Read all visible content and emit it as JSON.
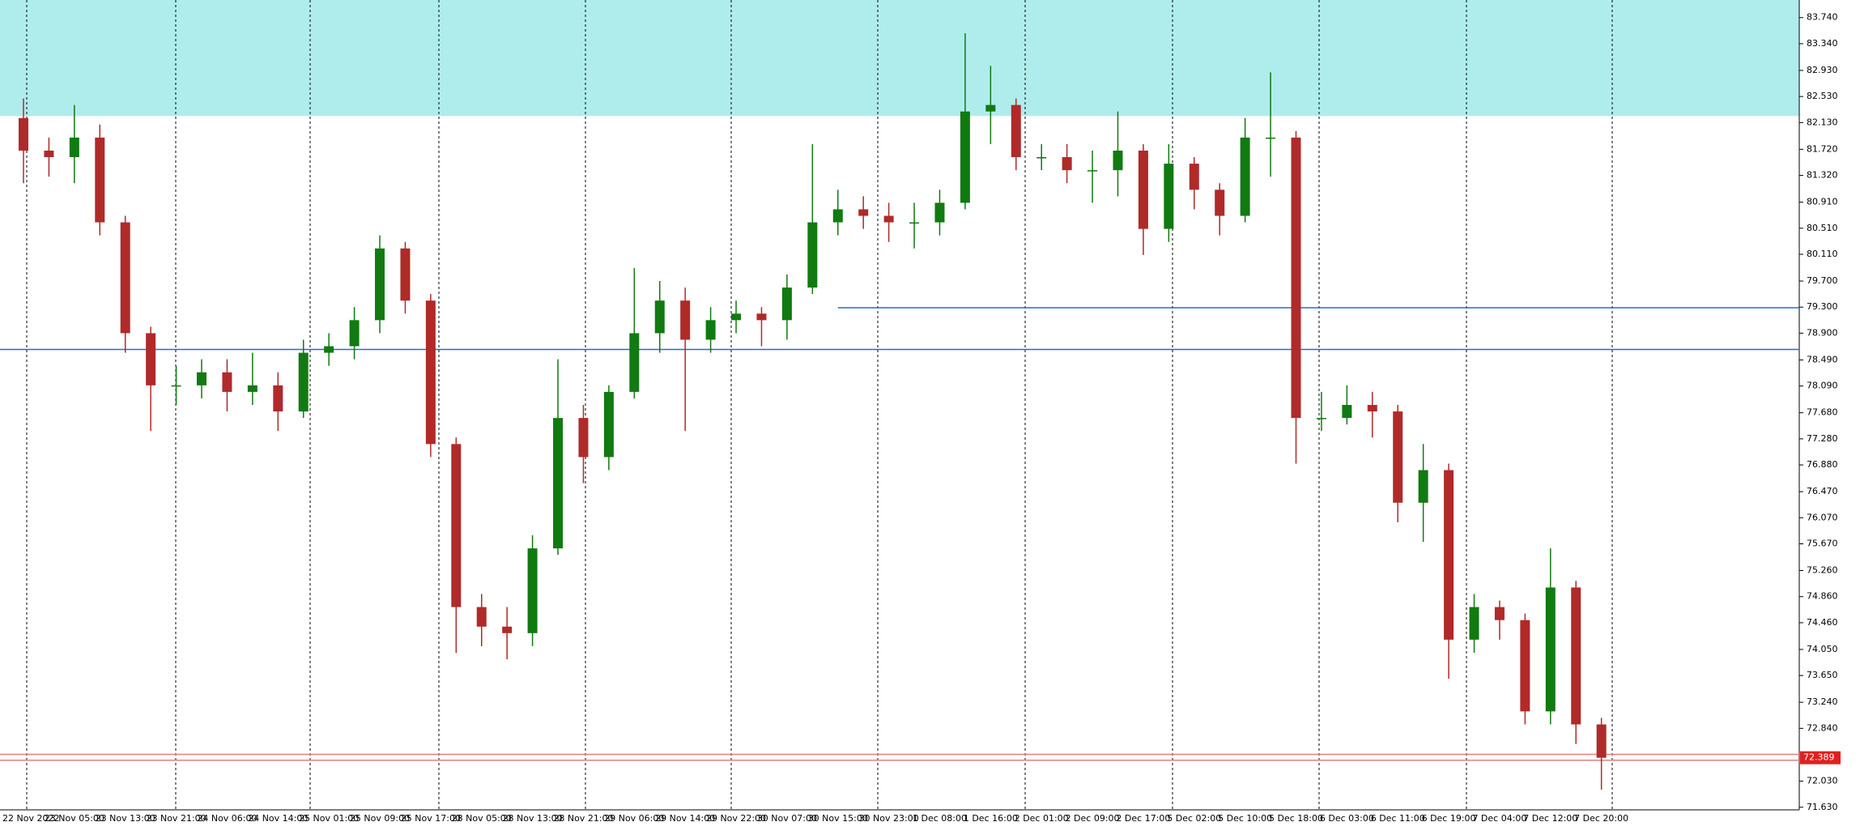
{
  "chart_data": {
    "type": "candlestick",
    "categories": [
      "22 Nov 2022",
      null,
      "23 Nov 05:00",
      null,
      "23 Nov 13:00",
      null,
      "23 Nov 21:00",
      null,
      "24 Nov 06:00",
      null,
      "24 Nov 14:00",
      null,
      "25 Nov 01:00",
      null,
      "25 Nov 09:00",
      null,
      "25 Nov 17:00",
      null,
      "28 Nov 05:00",
      null,
      "28 Nov 13:00",
      null,
      "28 Nov 21:00",
      null,
      "29 Nov 06:00",
      null,
      "29 Nov 14:00",
      null,
      "29 Nov 22:00",
      null,
      "30 Nov 07:00",
      null,
      "30 Nov 15:00",
      null,
      "30 Nov 23:00",
      null,
      "1 Dec 08:00",
      null,
      "1 Dec 16:00",
      null,
      "2 Dec 01:00",
      null,
      "2 Dec 09:00",
      null,
      "2 Dec 17:00",
      null,
      "5 Dec 02:00",
      null,
      "5 Dec 10:00",
      null,
      "5 Dec 18:00",
      null,
      "6 Dec 03:00",
      null,
      "6 Dec 11:00",
      null,
      "6 Dec 19:00",
      null,
      "7 Dec 04:00",
      null,
      "7 Dec 12:00",
      null,
      "7 Dec 20:00"
    ],
    "open": [
      82.2,
      81.7,
      81.6,
      81.9,
      80.6,
      78.9,
      78.1,
      78.1,
      78.3,
      78.0,
      78.1,
      77.7,
      78.6,
      78.7,
      79.1,
      80.2,
      79.4,
      77.2,
      74.7,
      74.4,
      74.3,
      75.6,
      77.6,
      77.0,
      78.0,
      78.9,
      79.4,
      78.8,
      79.1,
      79.2,
      79.1,
      79.6,
      80.6,
      80.8,
      80.7,
      80.6,
      80.6,
      80.9,
      82.3,
      82.4,
      81.6,
      81.6,
      81.4,
      81.4,
      81.7,
      80.5,
      81.5,
      81.1,
      80.7,
      81.9,
      81.9,
      77.6,
      77.6,
      77.8,
      77.7,
      76.3,
      76.8,
      74.2,
      74.7,
      74.5,
      73.1,
      75.0,
      72.9
    ],
    "high": [
      82.5,
      81.9,
      82.4,
      82.1,
      80.7,
      79.0,
      78.4,
      78.5,
      78.5,
      78.6,
      78.3,
      78.8,
      78.9,
      79.3,
      80.4,
      80.3,
      79.5,
      77.3,
      74.9,
      74.7,
      75.8,
      78.5,
      77.8,
      78.1,
      79.9,
      79.7,
      79.6,
      79.3,
      79.4,
      79.3,
      79.8,
      81.8,
      81.1,
      81.0,
      80.9,
      80.9,
      81.1,
      83.5,
      83.0,
      82.5,
      81.8,
      81.8,
      81.7,
      82.3,
      81.8,
      81.8,
      81.6,
      81.2,
      82.2,
      82.9,
      82.0,
      78.0,
      78.1,
      78.0,
      77.8,
      77.2,
      76.9,
      74.9,
      74.8,
      74.6,
      75.6,
      75.1,
      73.0
    ],
    "low": [
      81.2,
      81.3,
      81.2,
      80.4,
      78.6,
      77.4,
      77.8,
      77.9,
      77.7,
      77.8,
      77.4,
      77.6,
      78.4,
      78.5,
      78.9,
      79.2,
      77.0,
      74.0,
      74.1,
      73.9,
      74.1,
      75.5,
      76.6,
      76.8,
      77.9,
      78.6,
      77.4,
      78.6,
      78.9,
      78.7,
      78.8,
      79.5,
      80.4,
      80.5,
      80.3,
      80.2,
      80.4,
      80.8,
      81.8,
      81.4,
      81.4,
      81.2,
      80.9,
      81.0,
      80.1,
      80.3,
      80.8,
      80.4,
      80.6,
      81.3,
      76.9,
      77.4,
      77.5,
      77.3,
      76.0,
      75.7,
      73.6,
      74.0,
      74.2,
      72.9,
      72.9,
      72.6,
      71.9
    ],
    "close": [
      81.7,
      81.6,
      81.9,
      80.6,
      78.9,
      78.1,
      78.1,
      78.3,
      78.0,
      78.1,
      77.7,
      78.6,
      78.7,
      79.1,
      80.2,
      79.4,
      77.2,
      74.7,
      74.4,
      74.3,
      75.6,
      77.6,
      77.0,
      78.0,
      78.9,
      79.4,
      78.8,
      79.1,
      79.2,
      79.1,
      79.6,
      80.6,
      80.8,
      80.7,
      80.6,
      80.6,
      80.9,
      82.3,
      82.4,
      81.6,
      81.6,
      81.4,
      81.4,
      81.7,
      80.5,
      81.5,
      81.1,
      80.7,
      81.9,
      81.9,
      77.6,
      77.6,
      77.8,
      77.7,
      76.3,
      76.8,
      74.2,
      74.7,
      74.5,
      73.1,
      75.0,
      72.9,
      72.389
    ],
    "up_color": "#117a11",
    "down_color": "#b02a2a",
    "ylim": [
      71.59,
      84.01
    ],
    "yticks": [
      {
        "value": 83.74,
        "label": "83.740"
      },
      {
        "value": 83.34,
        "label": "83.340"
      },
      {
        "value": 82.93,
        "label": "82.930"
      },
      {
        "value": 82.53,
        "label": "82.530"
      },
      {
        "value": 82.13,
        "label": "82.130"
      },
      {
        "value": 81.72,
        "label": "81.720"
      },
      {
        "value": 81.32,
        "label": "81.320"
      },
      {
        "value": 80.91,
        "label": "80.910"
      },
      {
        "value": 80.51,
        "label": "80.510"
      },
      {
        "value": 80.11,
        "label": "80.110"
      },
      {
        "value": 79.7,
        "label": "79.700"
      },
      {
        "value": 79.3,
        "label": "79.300"
      },
      {
        "value": 78.9,
        "label": "78.900"
      },
      {
        "value": 78.49,
        "label": "78.490"
      },
      {
        "value": 78.09,
        "label": "78.090"
      },
      {
        "value": 77.68,
        "label": "77.680"
      },
      {
        "value": 77.28,
        "label": "77.280"
      },
      {
        "value": 76.88,
        "label": "76.880"
      },
      {
        "value": 76.47,
        "label": "76.470"
      },
      {
        "value": 76.07,
        "label": "76.070"
      },
      {
        "value": 75.67,
        "label": "75.670"
      },
      {
        "value": 75.26,
        "label": "75.260"
      },
      {
        "value": 74.86,
        "label": "74.860"
      },
      {
        "value": 74.46,
        "label": "74.460"
      },
      {
        "value": 74.05,
        "label": "74.050"
      },
      {
        "value": 73.65,
        "label": "73.650"
      },
      {
        "value": 73.24,
        "label": "73.240"
      },
      {
        "value": 72.84,
        "label": "72.840"
      },
      {
        "value": 72.03,
        "label": "72.030"
      },
      {
        "value": 71.63,
        "label": "71.630"
      }
    ],
    "zones": [
      {
        "from": 82.23,
        "to": 84.01,
        "color": "#afeded"
      }
    ],
    "hlines": [
      {
        "value": 78.65,
        "color": "#1f6fd1",
        "from": 0
      },
      {
        "value": 79.29,
        "color": "#1f6fd1",
        "from": 32
      },
      {
        "value": 72.44,
        "color": "#e08080",
        "from": 0
      },
      {
        "value": 72.35,
        "color": "#e08080",
        "from": 0
      }
    ],
    "current_price": {
      "value": 72.389,
      "label": "72.389"
    }
  }
}
